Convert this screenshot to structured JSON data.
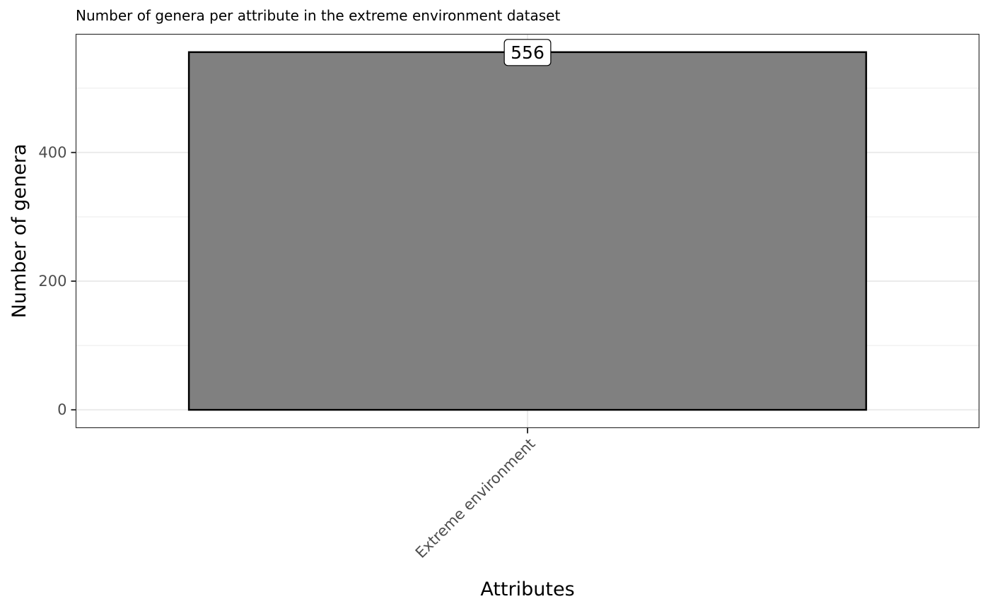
{
  "chart_data": {
    "type": "bar",
    "subtitle": "Number of genera per attribute in the extreme environment dataset",
    "categories": [
      "Extreme environment"
    ],
    "values": [
      556
    ],
    "data_labels": [
      "556"
    ],
    "xlabel": "Attributes",
    "ylabel": "Number of genera",
    "ylim": [
      -27.8,
      583.8
    ],
    "yticks": [
      0,
      200,
      400
    ],
    "ytick_labels": [
      "0",
      "200",
      "400"
    ],
    "grid": true,
    "legend": "none",
    "colors": {
      "bar_fill": "#808080",
      "bar_stroke": "#000000",
      "grid": "#ebebeb",
      "panel_border": "#333333",
      "tick_text": "#4d4d4d"
    }
  }
}
